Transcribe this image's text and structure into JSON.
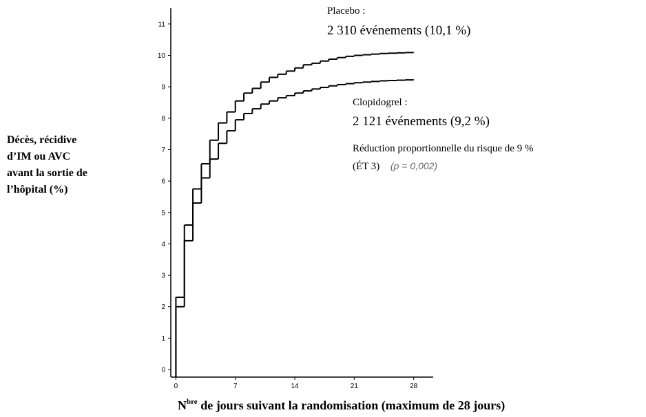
{
  "chart_data": {
    "type": "step",
    "xlim": [
      -0.6,
      30.3
    ],
    "ylim": [
      -0.24,
      11.5
    ],
    "xticks": [
      0,
      7,
      14,
      21,
      28
    ],
    "yticks": [
      0,
      1,
      2,
      3,
      4,
      5,
      6,
      7,
      8,
      9,
      10,
      11
    ],
    "y_label_lines": [
      "Décès, récidive",
      "d’IM ou AVC",
      "avant la sortie de",
      "l’hôpital (%)"
    ],
    "x_label": {
      "main": "N",
      "sup": "bre",
      "rest": " de jours suivant la randomisation (maximum de 28 jours)"
    },
    "annotations": {
      "placebo_name": "Placebo :",
      "placebo_events": "2 310 événements (10,1 %)",
      "clopidogrel_name": "Clopidogrel :",
      "clopidogrel_events": "2 121 événements (9,2 %)",
      "reduction": "Réduction proportionnelle du risque de 9 %",
      "et": "(ÉT 3)",
      "p": "(p = 0,002)"
    },
    "x": [
      0,
      1,
      2,
      3,
      4,
      5,
      6,
      7,
      8,
      9,
      10,
      11,
      12,
      13,
      14,
      15,
      16,
      17,
      18,
      19,
      20,
      21,
      22,
      23,
      24,
      25,
      26,
      27,
      28
    ],
    "series": [
      {
        "name": "Placebo",
        "color": "#000000",
        "values": [
          2.3,
          4.6,
          5.75,
          6.55,
          7.3,
          7.85,
          8.2,
          8.55,
          8.8,
          8.95,
          9.15,
          9.3,
          9.4,
          9.5,
          9.6,
          9.7,
          9.75,
          9.82,
          9.88,
          9.93,
          9.97,
          10.0,
          10.02,
          10.04,
          10.06,
          10.07,
          10.08,
          10.09,
          10.1
        ]
      },
      {
        "name": "Clopidogrel",
        "color": "#000000",
        "values": [
          2.0,
          4.1,
          5.3,
          6.1,
          6.7,
          7.2,
          7.6,
          7.95,
          8.15,
          8.3,
          8.45,
          8.55,
          8.65,
          8.72,
          8.8,
          8.87,
          8.93,
          8.98,
          9.03,
          9.07,
          9.1,
          9.13,
          9.15,
          9.17,
          9.19,
          9.2,
          9.21,
          9.22,
          9.23
        ]
      }
    ]
  }
}
